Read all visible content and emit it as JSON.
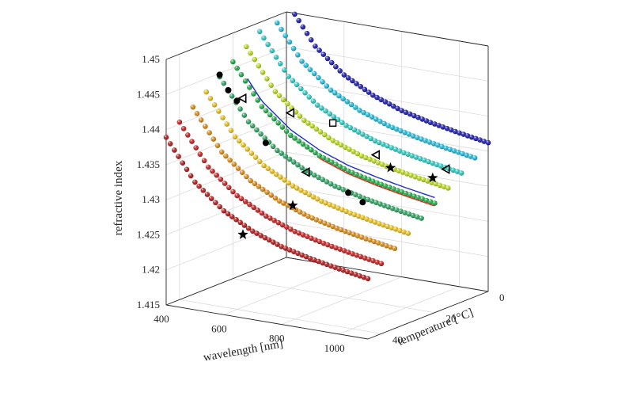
{
  "chart_data": {
    "type": "scatter3d",
    "title": "",
    "xlabel": "wavelength [nm]",
    "ylabel": "temperature [°C]",
    "zlabel": "refractive index",
    "xlim": [
      400,
      1100
    ],
    "ylim": [
      0,
      45
    ],
    "zlim": [
      1.415,
      1.45
    ],
    "xticks": [
      400,
      600,
      800,
      1000
    ],
    "yticks": [
      0,
      20,
      40
    ],
    "zticks": [
      1.415,
      1.42,
      1.425,
      1.43,
      1.435,
      1.44,
      1.445,
      1.45
    ],
    "xtick_labels": [
      "400",
      "600",
      "800",
      "1000"
    ],
    "ytick_labels": [
      "0",
      "20",
      "40"
    ],
    "ztick_labels": [
      "1.415",
      "1.42",
      "1.425",
      "1.43",
      "1.435",
      "1.44",
      "1.445",
      "1.45"
    ],
    "grid": true,
    "dispersion_model": {
      "wavelength_nm": [
        400,
        500,
        600,
        700,
        800,
        900,
        1000,
        1100
      ],
      "index_at_0C": [
        1.4515,
        1.4458,
        1.4424,
        1.4402,
        1.4387,
        1.4377,
        1.4369,
        1.4362
      ],
      "dn_dT_per_C": -0.00028
    },
    "series": [
      {
        "temperature": 0,
        "color": "#1a1aa8",
        "x_range": [
          400,
          1100
        ],
        "points": 50
      },
      {
        "temperature": 5,
        "color": "#22b8d8",
        "x_range": [
          400,
          1100
        ],
        "points": 50
      },
      {
        "temperature": 10,
        "color": "#2ec8c0",
        "x_range": [
          400,
          1100
        ],
        "points": 50
      },
      {
        "temperature": 15,
        "color": "#b8d820",
        "x_range": [
          400,
          1100
        ],
        "points": 50
      },
      {
        "temperature": 20,
        "color": "#20a848",
        "x_range": [
          400,
          1100
        ],
        "points": 50
      },
      {
        "temperature": 25,
        "color": "#2ea060",
        "x_range": [
          400,
          1100
        ],
        "points": 50
      },
      {
        "temperature": 30,
        "color": "#e8c020",
        "x_range": [
          400,
          1100
        ],
        "points": 50
      },
      {
        "temperature": 35,
        "color": "#d88a18",
        "x_range": [
          400,
          1100
        ],
        "points": 50
      },
      {
        "temperature": 40,
        "color": "#c22020",
        "x_range": [
          400,
          1100
        ],
        "points": 50
      },
      {
        "temperature": 45,
        "color": "#b01a1a",
        "x_range": [
          400,
          1100
        ],
        "points": 50
      }
    ],
    "lines": [
      {
        "color": "#1f2fd0",
        "temperature": 20,
        "x": [
          450,
          1100
        ],
        "index_offset": 0.0008
      },
      {
        "color": "#e0321e",
        "temperature": 20,
        "x": [
          700,
          1100
        ],
        "index_offset": -0.0004
      }
    ],
    "markers": [
      {
        "symbol": "circle",
        "x": 400,
        "y": 25,
        "z": 1.4448
      },
      {
        "symbol": "circle",
        "x": 430,
        "y": 25,
        "z": 1.4428
      },
      {
        "symbol": "circle",
        "x": 460,
        "y": 25,
        "z": 1.4415
      },
      {
        "symbol": "circle",
        "x": 560,
        "y": 25,
        "z": 1.4362
      },
      {
        "symbol": "circle",
        "x": 800,
        "y": 20,
        "z": 1.43
      },
      {
        "symbol": "circle",
        "x": 850,
        "y": 20,
        "z": 1.429
      },
      {
        "symbol": "star",
        "x": 620,
        "y": 40,
        "z": 1.4258
      },
      {
        "symbol": "star",
        "x": 700,
        "y": 30,
        "z": 1.429
      },
      {
        "symbol": "star",
        "x": 900,
        "y": 15,
        "z": 1.4335
      },
      {
        "symbol": "star",
        "x": 1000,
        "y": 10,
        "z": 1.432
      },
      {
        "symbol": "triangle",
        "x": 480,
        "y": 25,
        "z": 1.442
      },
      {
        "symbol": "triangle",
        "x": 600,
        "y": 20,
        "z": 1.44
      },
      {
        "symbol": "triangle",
        "x": 700,
        "y": 25,
        "z": 1.433
      },
      {
        "symbol": "triangle",
        "x": 850,
        "y": 15,
        "z": 1.435
      },
      {
        "symbol": "square",
        "x": 700,
        "y": 15,
        "z": 1.4385
      },
      {
        "symbol": "triangle",
        "x": 1000,
        "y": 5,
        "z": 1.4325
      }
    ]
  }
}
